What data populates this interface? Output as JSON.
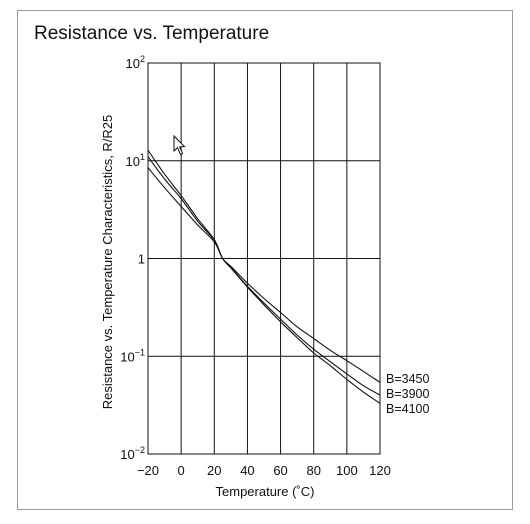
{
  "chart_data": {
    "type": "line",
    "title": "Resistance vs. Temperature",
    "xlabel": "Temperature (˚C)",
    "ylabel": "Resistance vs. Temperature Characteristics, R/R25",
    "xlim": [
      -20,
      120
    ],
    "ylim": [
      0.01,
      100
    ],
    "yscale": "log",
    "grid": true,
    "x_ticks": [
      "−20",
      "0",
      "20",
      "40",
      "60",
      "80",
      "100",
      "120"
    ],
    "x_tick_values": [
      -20,
      0,
      20,
      40,
      60,
      80,
      100,
      120
    ],
    "y_ticks": [
      {
        "value": 100,
        "base": "10",
        "exp": "2"
      },
      {
        "value": 10,
        "base": "10",
        "exp": "1"
      },
      {
        "value": 1,
        "base": "1",
        "exp": ""
      },
      {
        "value": 0.1,
        "base": "10",
        "exp": "−1"
      },
      {
        "value": 0.01,
        "base": "10",
        "exp": "−2"
      }
    ],
    "x": [
      -20,
      -10,
      0,
      10,
      20,
      25,
      30,
      40,
      50,
      60,
      70,
      80,
      90,
      100,
      110,
      120
    ],
    "series": [
      {
        "name": "B=3450",
        "values": [
          8.5,
          5.3,
          3.4,
          2.2,
          1.48,
          1.0,
          0.83,
          0.56,
          0.39,
          0.28,
          0.2,
          0.152,
          0.115,
          0.09,
          0.07,
          0.054
        ]
      },
      {
        "name": "B=3900",
        "values": [
          11.0,
          6.5,
          4.1,
          2.4,
          1.54,
          1.0,
          0.81,
          0.52,
          0.35,
          0.24,
          0.165,
          0.118,
          0.088,
          0.066,
          0.05,
          0.04
        ]
      },
      {
        "name": "B=4100",
        "values": [
          12.8,
          7.3,
          4.4,
          2.55,
          1.56,
          1.0,
          0.8,
          0.51,
          0.335,
          0.225,
          0.155,
          0.108,
          0.08,
          0.058,
          0.043,
          0.033
        ]
      }
    ]
  }
}
